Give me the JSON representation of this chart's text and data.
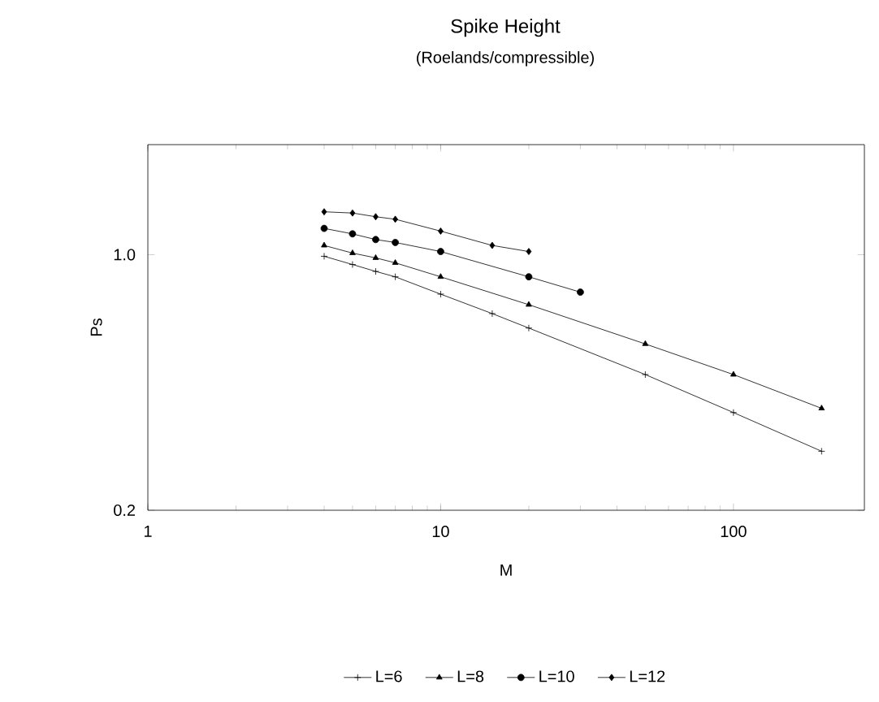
{
  "chart_data": {
    "type": "line",
    "title": "Spike Height",
    "subtitle": "(Roelands/compressible)",
    "xlabel": "M",
    "ylabel": "Ps",
    "log": "xy",
    "xlim": [
      1,
      280
    ],
    "ylim": [
      0.2,
      2
    ],
    "xticks": [
      1,
      10,
      100
    ],
    "yticks": [
      {
        "value": 0.2,
        "label": "0.2"
      },
      {
        "value": 1,
        "label": "1.0"
      }
    ],
    "legend": "bottom",
    "line_style": "solid",
    "series": [
      {
        "name": "L=6",
        "color": "#000000",
        "marker": "cross",
        "x": [
          4,
          5,
          6,
          7,
          10,
          15,
          20,
          50,
          100,
          200
        ],
        "values": [
          0.99,
          0.94,
          0.9,
          0.87,
          0.78,
          0.69,
          0.63,
          0.47,
          0.37,
          0.29
        ]
      },
      {
        "name": "L=8",
        "color": "#000000",
        "marker": "triangle",
        "x": [
          4,
          5,
          6,
          7,
          10,
          20,
          50,
          100,
          200
        ],
        "values": [
          1.06,
          1.01,
          0.98,
          0.95,
          0.87,
          0.73,
          0.57,
          0.47,
          0.38
        ]
      },
      {
        "name": "L=10",
        "color": "#000000",
        "marker": "circle",
        "x": [
          4,
          5,
          6,
          7,
          10,
          20,
          30
        ],
        "values": [
          1.18,
          1.14,
          1.1,
          1.08,
          1.02,
          0.87,
          0.79
        ]
      },
      {
        "name": "L=12",
        "color": "#000000",
        "marker": "diamond",
        "x": [
          4,
          5,
          6,
          7,
          10,
          15,
          20
        ],
        "values": [
          1.31,
          1.3,
          1.27,
          1.25,
          1.16,
          1.06,
          1.02
        ]
      }
    ]
  }
}
